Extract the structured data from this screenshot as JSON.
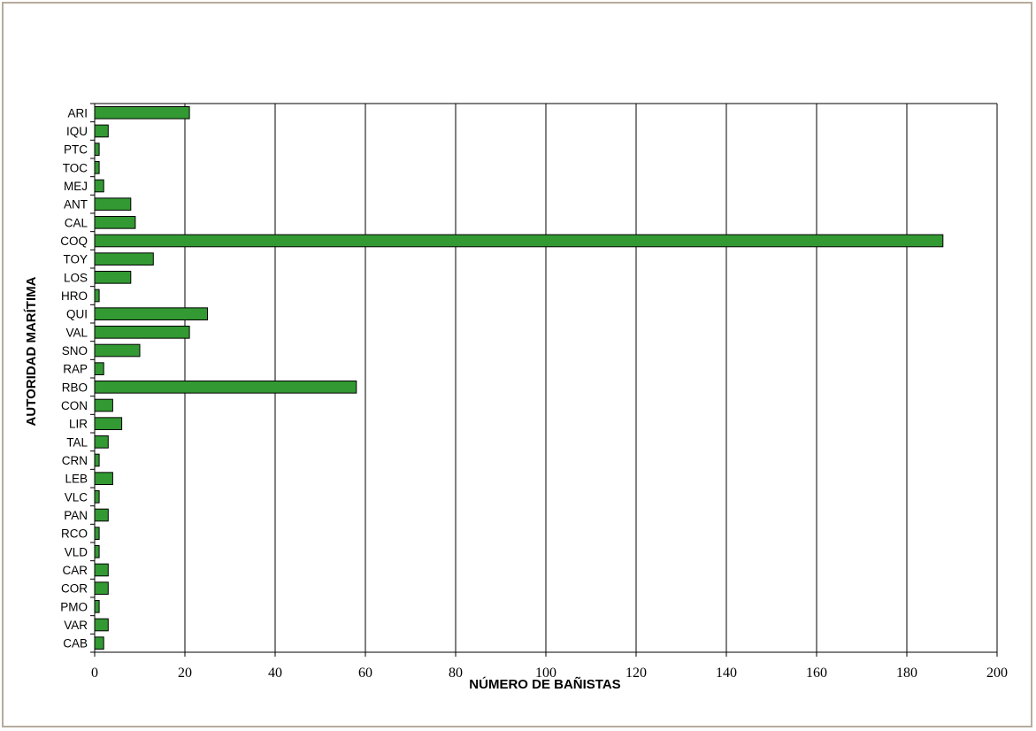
{
  "chart_data": {
    "type": "bar",
    "orientation": "horizontal",
    "title": "",
    "xlabel": "NÚMERO DE BAÑISTAS",
    "ylabel": "AUTORIDAD MARÍTIMA",
    "xlim": [
      0,
      200
    ],
    "x_ticks": [
      0,
      20,
      40,
      60,
      80,
      100,
      120,
      140,
      160,
      180,
      200
    ],
    "grid": "vertical",
    "legend": "none",
    "bar_color": "#339933",
    "categories": [
      "ARI",
      "IQU",
      "PTC",
      "TOC",
      "MEJ",
      "ANT",
      "CAL",
      "COQ",
      "TOY",
      "LOS",
      "HRO",
      "QUI",
      "VAL",
      "SNO",
      "RAP",
      "RBO",
      "CON",
      "LIR",
      "TAL",
      "CRN",
      "LEB",
      "VLC",
      "PAN",
      "RCO",
      "VLD",
      "CAR",
      "COR",
      "PMO",
      "VAR",
      "CAB"
    ],
    "values": [
      21,
      3,
      1,
      1,
      2,
      8,
      9,
      188,
      13,
      8,
      1,
      25,
      21,
      10,
      2,
      58,
      4,
      6,
      3,
      1,
      4,
      1,
      3,
      1,
      1,
      3,
      3,
      1,
      3,
      2
    ]
  }
}
